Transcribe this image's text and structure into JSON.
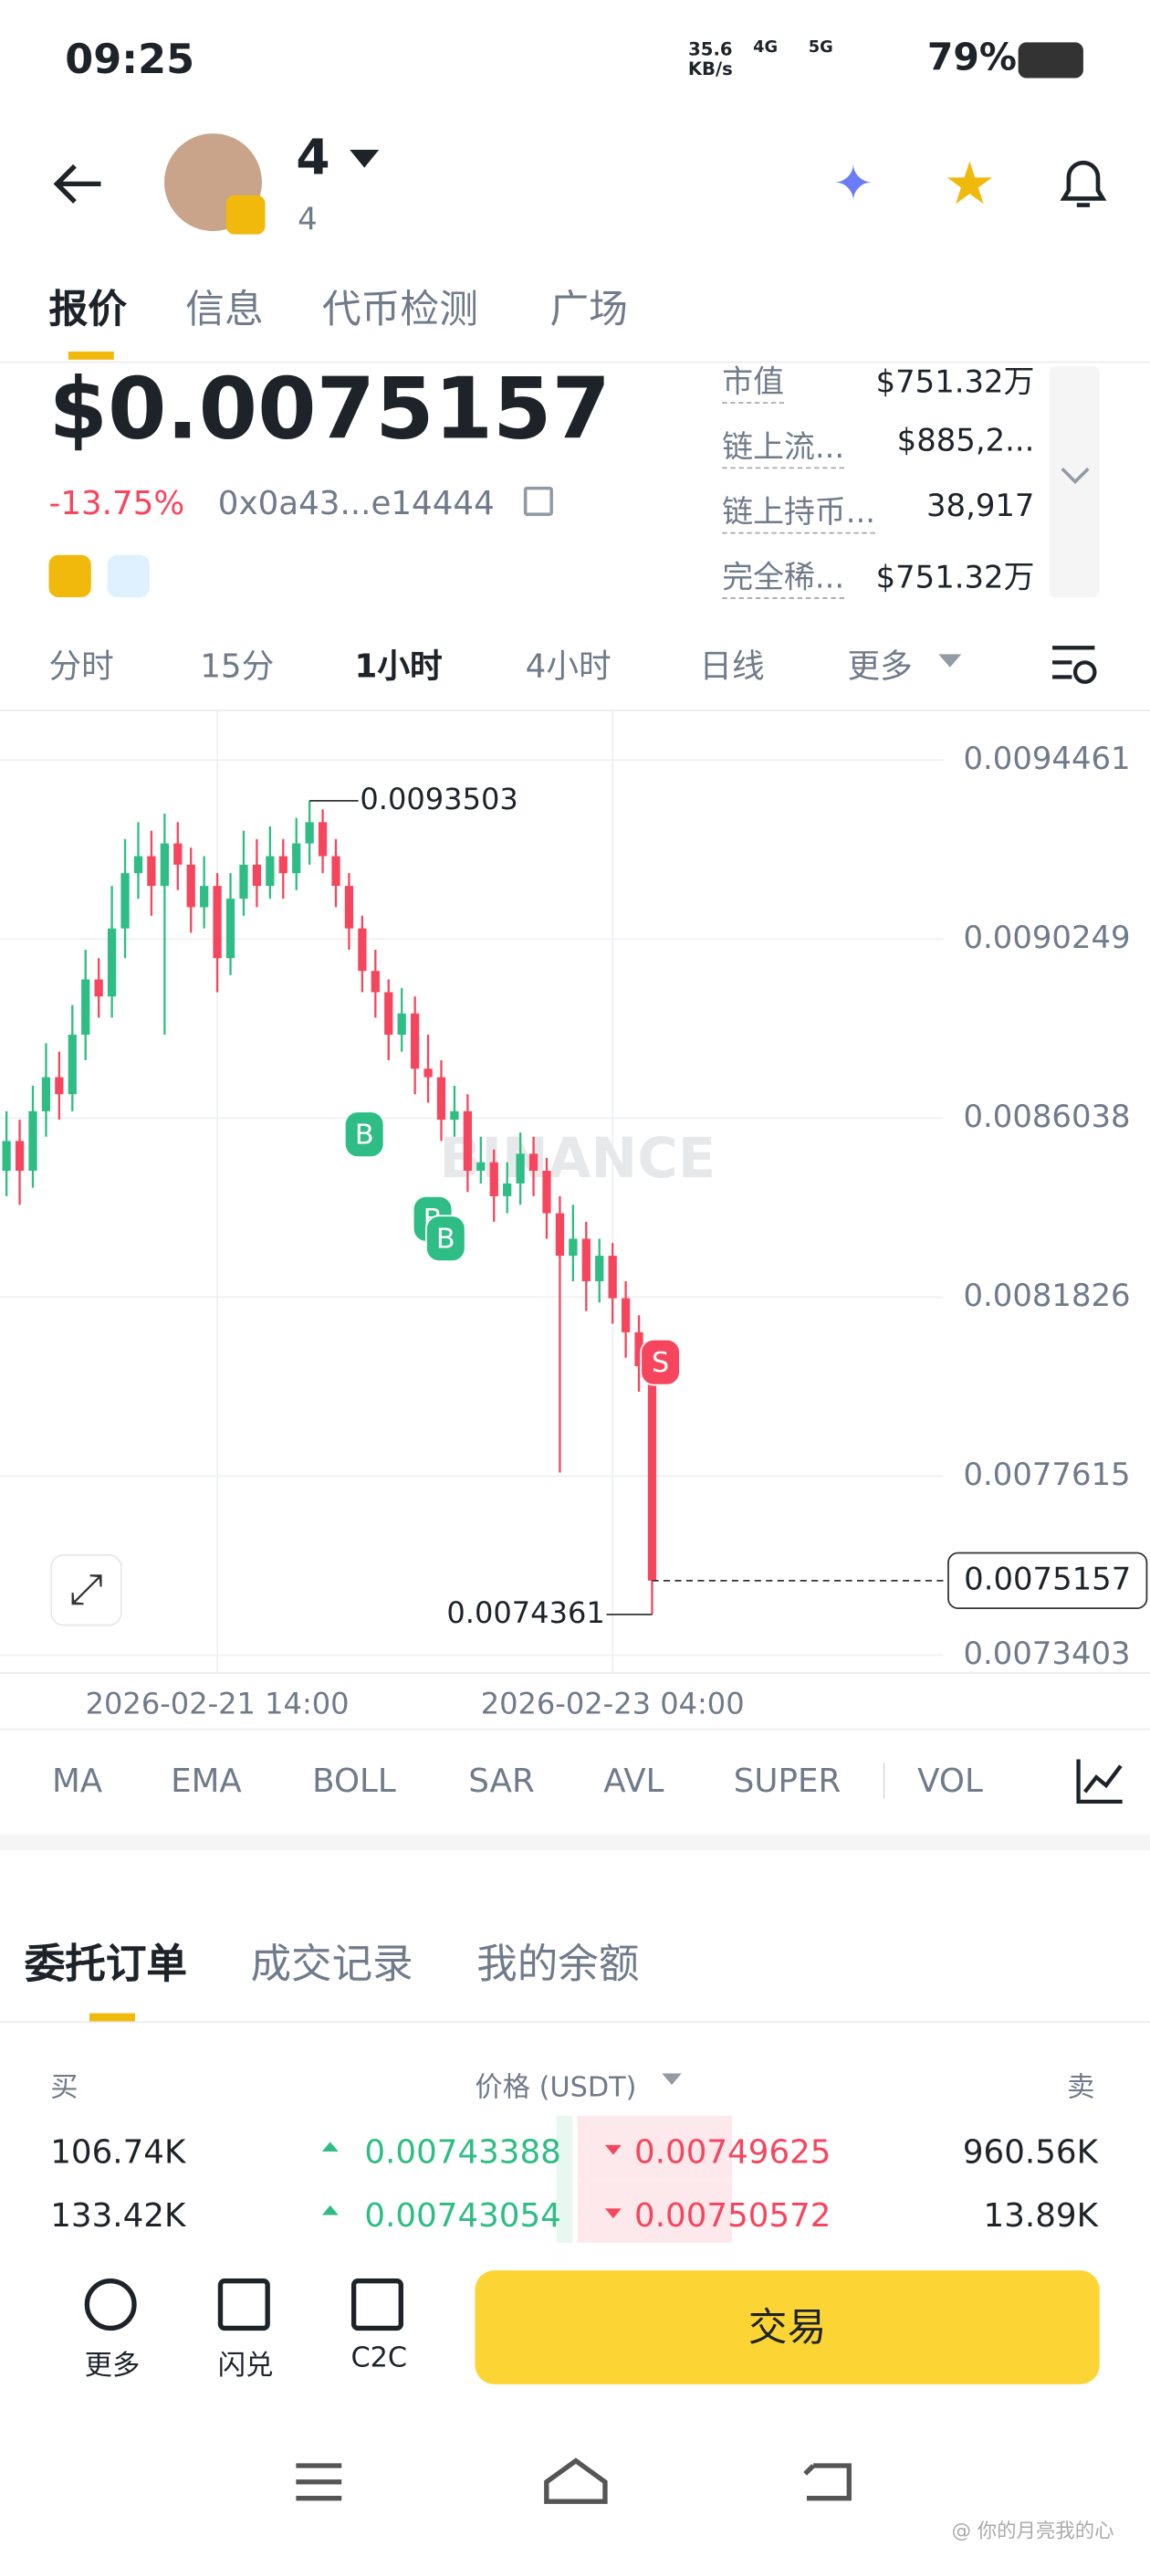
{
  "status_bar": {
    "time": "09:25",
    "speed": "35.6",
    "speed_unit": "KB/s",
    "net1": "4G",
    "net2": "5G",
    "battery": "79%"
  },
  "header": {
    "title": "4",
    "subtitle": "4"
  },
  "tabs": [
    "报价",
    "信息",
    "代币检测",
    "广场"
  ],
  "price": {
    "value": "$0.0075157",
    "change": "-13.75%",
    "address": "0x0a43...e14444"
  },
  "stats": [
    {
      "label": "市值",
      "value": "$751.32万"
    },
    {
      "label": "链上流...",
      "value": "$885,2..."
    },
    {
      "label": "链上持币...",
      "value": "38,917"
    },
    {
      "label": "完全稀...",
      "value": "$751.32万"
    }
  ],
  "intervals": [
    "分时",
    "15分",
    "1小时",
    "4小时",
    "日线",
    "更多"
  ],
  "chart_watermark": "BINANCE",
  "trade_markers": [
    "B",
    "B",
    "B",
    "S"
  ],
  "chart_data": {
    "type": "candlestick",
    "up_color": "#2ebd85",
    "down_color": "#f6465d",
    "categories": [
      null,
      null,
      null,
      null,
      null,
      null,
      null,
      null,
      null,
      null,
      null,
      null,
      null,
      null,
      null,
      null,
      "2026-02-21 14:00",
      null,
      null,
      null,
      null,
      null,
      null,
      null,
      null,
      null,
      null,
      null,
      null,
      null,
      null,
      null,
      null,
      null,
      null,
      null,
      null,
      null,
      null,
      null,
      null,
      null,
      null,
      null,
      null,
      null,
      "2026-02-23 04:00",
      null,
      null,
      null
    ],
    "open": [
      0.00848,
      0.00855,
      0.00848,
      0.00862,
      0.0087,
      0.00866,
      0.0088,
      0.00893,
      0.00889,
      0.00905,
      0.00918,
      0.00922,
      0.00915,
      0.00925,
      0.0092,
      0.0091,
      0.00915,
      0.00898,
      0.00912,
      0.0092,
      0.00915,
      0.00922,
      0.00918,
      0.00925,
      0.0093,
      0.00922,
      0.00915,
      0.00905,
      0.00895,
      0.0089,
      0.0088,
      0.00885,
      0.00872,
      0.0087,
      0.0086,
      0.00862,
      0.00848,
      0.0085,
      0.00842,
      0.00845,
      0.00852,
      0.00848,
      0.00838,
      0.00828,
      0.00832,
      0.00822,
      0.00828,
      0.00818,
      0.0081,
      0.00802
    ],
    "high": [
      0.00862,
      0.0086,
      0.00868,
      0.00878,
      0.00876,
      0.00887,
      0.009,
      0.00898,
      0.00915,
      0.00926,
      0.0093,
      0.00928,
      0.00932,
      0.0093,
      0.00924,
      0.00922,
      0.00918,
      0.00918,
      0.00928,
      0.00926,
      0.00929,
      0.00926,
      0.00931,
      0.0093503,
      0.00933,
      0.00926,
      0.00918,
      0.00908,
      0.009,
      0.00893,
      0.00891,
      0.00889,
      0.0088,
      0.00874,
      0.00868,
      0.00866,
      0.00856,
      0.00853,
      0.0085,
      0.00857,
      0.00856,
      0.00851,
      0.00842,
      0.0084,
      0.00836,
      0.00832,
      0.00831,
      0.00822,
      0.00814,
      0.00806
    ],
    "low": [
      0.00842,
      0.0084,
      0.00844,
      0.00856,
      0.0086,
      0.00862,
      0.00874,
      0.00884,
      0.00884,
      0.00898,
      0.00912,
      0.00908,
      0.0088,
      0.00914,
      0.00904,
      0.00905,
      0.0089,
      0.00894,
      0.00908,
      0.0091,
      0.00912,
      0.00912,
      0.00914,
      0.0092,
      0.00918,
      0.0091,
      0.009,
      0.0089,
      0.00884,
      0.00874,
      0.00876,
      0.00866,
      0.00864,
      0.00855,
      0.00856,
      0.00843,
      0.00845,
      0.00836,
      0.00838,
      0.0084,
      0.00842,
      0.00832,
      0.00777,
      0.00822,
      0.00815,
      0.00817,
      0.00812,
      0.00804,
      0.00796,
      0.0074361
    ],
    "close": [
      0.00855,
      0.00848,
      0.00862,
      0.0087,
      0.00866,
      0.0088,
      0.00893,
      0.00889,
      0.00905,
      0.00918,
      0.00922,
      0.00915,
      0.00925,
      0.0092,
      0.0091,
      0.00915,
      0.00898,
      0.00912,
      0.0092,
      0.00915,
      0.00922,
      0.00918,
      0.00925,
      0.0093,
      0.00922,
      0.00915,
      0.00905,
      0.00895,
      0.0089,
      0.0088,
      0.00885,
      0.00872,
      0.0087,
      0.0086,
      0.00862,
      0.00848,
      0.0085,
      0.00842,
      0.00845,
      0.00852,
      0.00848,
      0.00838,
      0.00828,
      0.00832,
      0.00822,
      0.00828,
      0.00818,
      0.0081,
      0.00802,
      0.0075157
    ],
    "ylim": [
      0.0072982,
      0.009561
    ],
    "yticks": [
      0.0094461,
      0.0090249,
      0.0086038,
      0.0081826,
      0.0077615,
      0.0073403
    ],
    "grid": true
  },
  "indicators": [
    "MA",
    "EMA",
    "BOLL",
    "SAR",
    "AVL",
    "SUPER",
    "VOL"
  ],
  "order_tabs": [
    "委托订单",
    "成交记录",
    "我的余额"
  ],
  "order_book": {
    "header": {
      "buy": "买",
      "price": "价格 (USDT)",
      "sell": "卖"
    },
    "rows": [
      [
        "106.74K",
        "0.00743388",
        "0.00749625",
        "960.56K"
      ],
      [
        "133.42K",
        "0.00743054",
        "0.00750572",
        "13.89K"
      ]
    ]
  },
  "bottom": {
    "actions": [
      "更多",
      "闪兑",
      "C2C"
    ],
    "trade": "交易"
  },
  "watermark": "@ 你的月亮我的心"
}
